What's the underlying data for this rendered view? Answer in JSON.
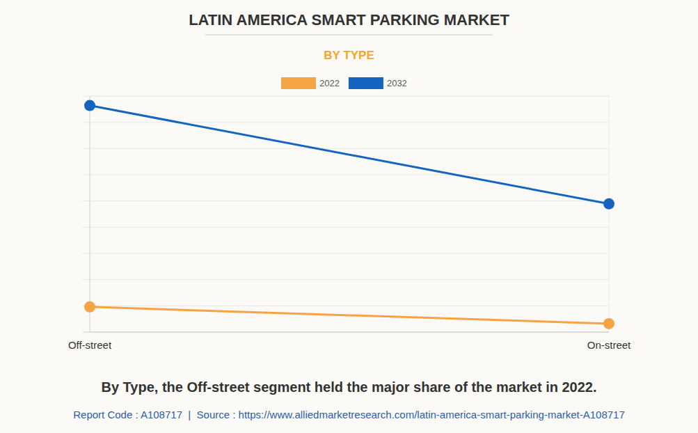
{
  "chart_data": {
    "type": "line",
    "title": "LATIN AMERICA SMART PARKING MARKET",
    "subtitle": "BY TYPE",
    "caption": "By Type, the Off-street segment held the major share of the market in 2022.",
    "footer": "Report Code : A108717  |  Source : https://www.alliedmarketresearch.com/latin-america-smart-parking-market-A108717",
    "categories": [
      "Off-street",
      "On-street"
    ],
    "series": [
      {
        "name": "2022",
        "color": "#f4a444",
        "values": [
          0.96,
          0.32
        ],
        "marker": "circle"
      },
      {
        "name": "2032",
        "color": "#1565c0",
        "values": [
          8.64,
          4.89
        ],
        "marker": "circle"
      }
    ],
    "ylim": [
      0,
      9
    ],
    "yticks": [
      0,
      1,
      2,
      3,
      4,
      5,
      6,
      7,
      8,
      9
    ],
    "grid": true,
    "legend": "top",
    "tick_labels": "x"
  }
}
